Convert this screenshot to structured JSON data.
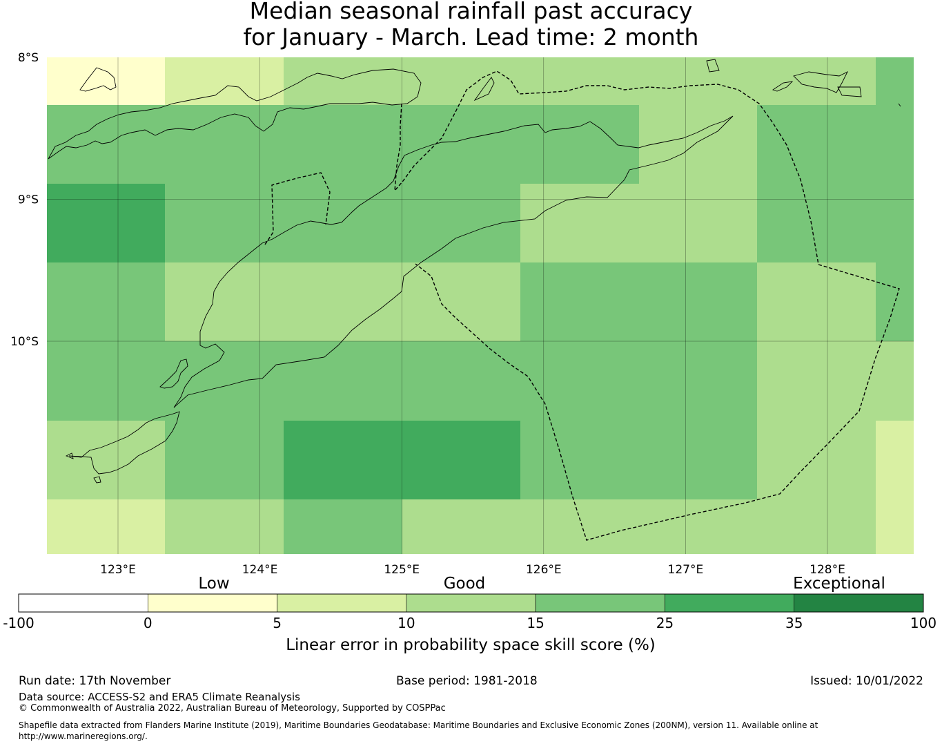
{
  "title": {
    "line1": "Median seasonal rainfall past accuracy",
    "line2": "for January - March. Lead time: 2 month"
  },
  "map": {
    "lat_labels": [
      "8°S",
      "9°S",
      "10°S"
    ],
    "lon_labels": [
      "123°E",
      "124°E",
      "125°E",
      "126°E",
      "127°E",
      "128°E"
    ],
    "lat_values": [
      -8,
      -9,
      -10
    ],
    "lon_values": [
      123,
      124,
      125,
      126,
      127,
      128
    ],
    "grid_cells_lon_edges": [
      122.5,
      123.33,
      124.17,
      125.0,
      125.83,
      126.67,
      127.5,
      128.33,
      128.6
    ],
    "grid_cells_lat_edges": [
      -7.97,
      -8.3,
      -8.87,
      -9.42,
      -9.97,
      -10.53,
      -11.08,
      -11.47
    ],
    "skill_colors": [
      "#ffffcc",
      "#d9f0a3",
      "#addd8e",
      "#78c679",
      "#41ab5d",
      "#238443"
    ]
  },
  "legend": {
    "category_low": "Low",
    "category_good": "Good",
    "category_exceptional": "Exceptional",
    "ticks": [
      "-100",
      "0",
      "5",
      "10",
      "15",
      "25",
      "35",
      "100"
    ],
    "colors": [
      "#ffffff",
      "#ffffcc",
      "#d9f0a3",
      "#addd8e",
      "#78c679",
      "#41ab5d",
      "#238443"
    ],
    "label": "Linear error in probability space skill score (%)"
  },
  "footer": {
    "run_date": "Run date: 17th November",
    "base_period": "Base period: 1981-2018",
    "issued": "Issued: 10/01/2022",
    "data_source": "Data source: ACCESS-S2 and ERA5 Climate Reanalysis",
    "copyright": "© Commonwealth of Australia 2022, Australian Bureau of Meteorology, Supported by COSPPac",
    "shapefile_line1": "Shapefile data extracted from Flanders Marine Institute (2019), Maritime Boundaries Geodatabase: Maritime Boundaries and Exclusive Economic Zones (200NM), version 11. Available online at",
    "shapefile_line2": "http://www.marineregions.org/."
  }
}
